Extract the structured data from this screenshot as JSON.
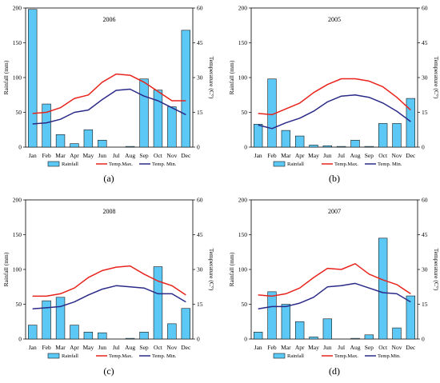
{
  "style": {
    "bar_fill": "#5bc8f5",
    "bar_stroke": "#1a1a1a",
    "max_color": "#e8231c",
    "min_color": "#2b2a88"
  },
  "chart_data": [
    {
      "type": "bar+line",
      "title": "2006",
      "caption": "(a)",
      "categories": [
        "Jan",
        "Feb",
        "Mar",
        "Apr",
        "May",
        "Jun",
        "Jul",
        "Aug",
        "Sep",
        "Oct",
        "Nov",
        "Dec"
      ],
      "xlabel": "",
      "ylabel": "Rainfall (mm)",
      "y2label": "Temperature (C°)",
      "ylim": [
        0,
        200
      ],
      "yticks": [
        0,
        50,
        100,
        150,
        200
      ],
      "y2lim": [
        0,
        60
      ],
      "y2ticks": [
        0,
        15,
        30,
        45,
        60
      ],
      "legend": [
        "Rainfall",
        "Temp.Max.",
        "Temp. Min."
      ],
      "legend_position": "bottom",
      "series": [
        {
          "name": "Rainfall",
          "kind": "bar",
          "axis": "left",
          "values": [
            198,
            62,
            18,
            5,
            25,
            10,
            0,
            1,
            98,
            82,
            58,
            168
          ]
        },
        {
          "name": "Temp.Max.",
          "kind": "line",
          "axis": "right",
          "values": [
            14.5,
            15,
            17,
            21,
            22.5,
            28,
            31.5,
            31,
            28,
            24,
            20,
            20
          ]
        },
        {
          "name": "Temp. Min.",
          "kind": "line",
          "axis": "right",
          "values": [
            10,
            10.5,
            12,
            15,
            16,
            20.5,
            24.5,
            25,
            22,
            20,
            17,
            14
          ]
        }
      ]
    },
    {
      "type": "bar+line",
      "title": "2005",
      "caption": "(b)",
      "categories": [
        "Jan",
        "Feb",
        "Mar",
        "Apr",
        "May",
        "Jun",
        "Jul",
        "Aug",
        "Sep",
        "Oct",
        "Nov",
        "Dec"
      ],
      "xlabel": "",
      "ylabel": "Rainfall (mm)",
      "y2label": "Temperature (C°)",
      "ylim": [
        0,
        200
      ],
      "yticks": [
        0,
        50,
        100,
        150,
        200
      ],
      "y2lim": [
        0,
        60
      ],
      "y2ticks": [
        0,
        15,
        30,
        45,
        60
      ],
      "legend": [
        "Rainfall",
        "Temp.Max.",
        "Temp. Min."
      ],
      "legend_position": "bottom",
      "series": [
        {
          "name": "Rainfall",
          "kind": "bar",
          "axis": "left",
          "values": [
            33,
            98,
            24,
            16,
            3,
            2,
            1,
            10,
            1,
            34,
            34,
            70
          ]
        },
        {
          "name": "Temp.Max.",
          "kind": "line",
          "axis": "right",
          "values": [
            14.5,
            14,
            16.5,
            19,
            23.5,
            27,
            29.5,
            29.5,
            28.5,
            26,
            21.5,
            16
          ]
        },
        {
          "name": "Temp. Min.",
          "kind": "line",
          "axis": "right",
          "values": [
            9.5,
            8,
            10.5,
            12.5,
            15.5,
            19.5,
            22,
            22.5,
            21.5,
            19,
            15.5,
            11
          ]
        }
      ]
    },
    {
      "type": "bar+line",
      "title": "2008",
      "caption": "(c)",
      "categories": [
        "Jan",
        "Feb",
        "Mar",
        "Apr",
        "May",
        "Jun",
        "Jul",
        "Aug",
        "Sep",
        "Oct",
        "Nov",
        "Dec"
      ],
      "xlabel": "",
      "ylabel": "Rainfall (mm)",
      "y2label": "Temperature (C°)",
      "ylim": [
        0,
        200
      ],
      "yticks": [
        0,
        50,
        100,
        150,
        200
      ],
      "y2lim": [
        0,
        60
      ],
      "y2ticks": [
        0,
        15,
        30,
        45,
        60
      ],
      "legend": [
        "Rainfall",
        "Temp.Max.",
        "Temp. Min."
      ],
      "legend_position": "bottom",
      "series": [
        {
          "name": "Rainfall",
          "kind": "bar",
          "axis": "left",
          "values": [
            20,
            55,
            60,
            20,
            10,
            9,
            0,
            1,
            10,
            104,
            22,
            44
          ]
        },
        {
          "name": "Temp.Max.",
          "kind": "line",
          "axis": "right",
          "values": [
            18.5,
            18.5,
            19.5,
            22,
            26.5,
            29.5,
            31,
            31.5,
            28,
            25,
            23,
            19
          ]
        },
        {
          "name": "Temp. Min.",
          "kind": "line",
          "axis": "right",
          "values": [
            13,
            13.5,
            14,
            16,
            19,
            21.5,
            23,
            22.5,
            22,
            19.5,
            19.5,
            16
          ]
        }
      ]
    },
    {
      "type": "bar+line",
      "title": "2007",
      "caption": "(d)",
      "categories": [
        "Jan",
        "Feb",
        "Mar",
        "Apr",
        "May",
        "Jun",
        "Jul",
        "Aug",
        "Sep",
        "Oct",
        "Nov",
        "Dec"
      ],
      "xlabel": "",
      "ylabel": "Rainfall (mm)",
      "y2label": "Temperature (C°)",
      "ylim": [
        0,
        200
      ],
      "yticks": [
        0,
        50,
        100,
        150,
        200
      ],
      "y2lim": [
        0,
        60
      ],
      "y2ticks": [
        0,
        15,
        30,
        45,
        60
      ],
      "legend": [
        "Rainfall",
        "Temp.Max.",
        "Temp.Min."
      ],
      "legend_position": "bottom",
      "series": [
        {
          "name": "Rainfall",
          "kind": "bar",
          "axis": "left",
          "values": [
            10,
            68,
            50,
            25,
            3,
            29,
            0,
            1,
            6,
            145,
            16,
            62
          ]
        },
        {
          "name": "Temp.Max.",
          "kind": "line",
          "axis": "right",
          "values": [
            19,
            18.5,
            19.5,
            22,
            26.5,
            30.5,
            30,
            32.5,
            28,
            25.5,
            23.5,
            19.5
          ]
        },
        {
          "name": "Temp.Min.",
          "kind": "line",
          "axis": "right",
          "values": [
            13,
            14,
            14,
            15.5,
            18,
            22.5,
            23,
            24,
            22,
            20,
            19.5,
            16
          ]
        }
      ]
    }
  ]
}
